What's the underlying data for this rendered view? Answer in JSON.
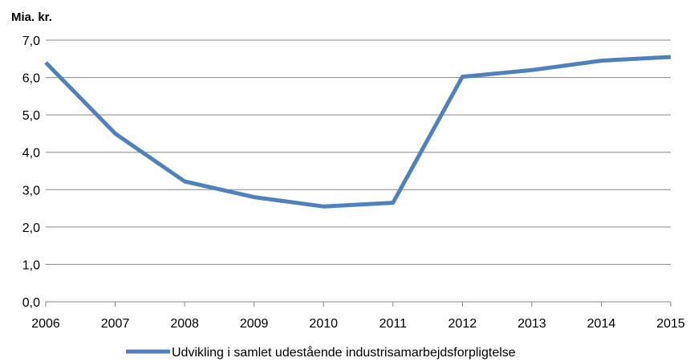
{
  "chart_data": {
    "type": "line",
    "title": "",
    "ylabel": "Mia. kr.",
    "xlabel": "",
    "x": [
      "2006",
      "2007",
      "2008",
      "2009",
      "2010",
      "2011",
      "2012",
      "2013",
      "2014",
      "2015"
    ],
    "series": [
      {
        "name": "Udvikling i samlet udestående industrisamarbejdsforpligtelse",
        "values": [
          6.4,
          4.5,
          3.22,
          2.8,
          2.55,
          2.65,
          6.02,
          6.2,
          6.45,
          6.55
        ],
        "color": "#4F81BD"
      }
    ],
    "ylim": [
      0,
      7
    ],
    "yticks": [
      "0,0",
      "1,0",
      "2,0",
      "3,0",
      "4,0",
      "5,0",
      "6,0",
      "7,0"
    ],
    "grid": true,
    "legend": "bottom-center"
  }
}
